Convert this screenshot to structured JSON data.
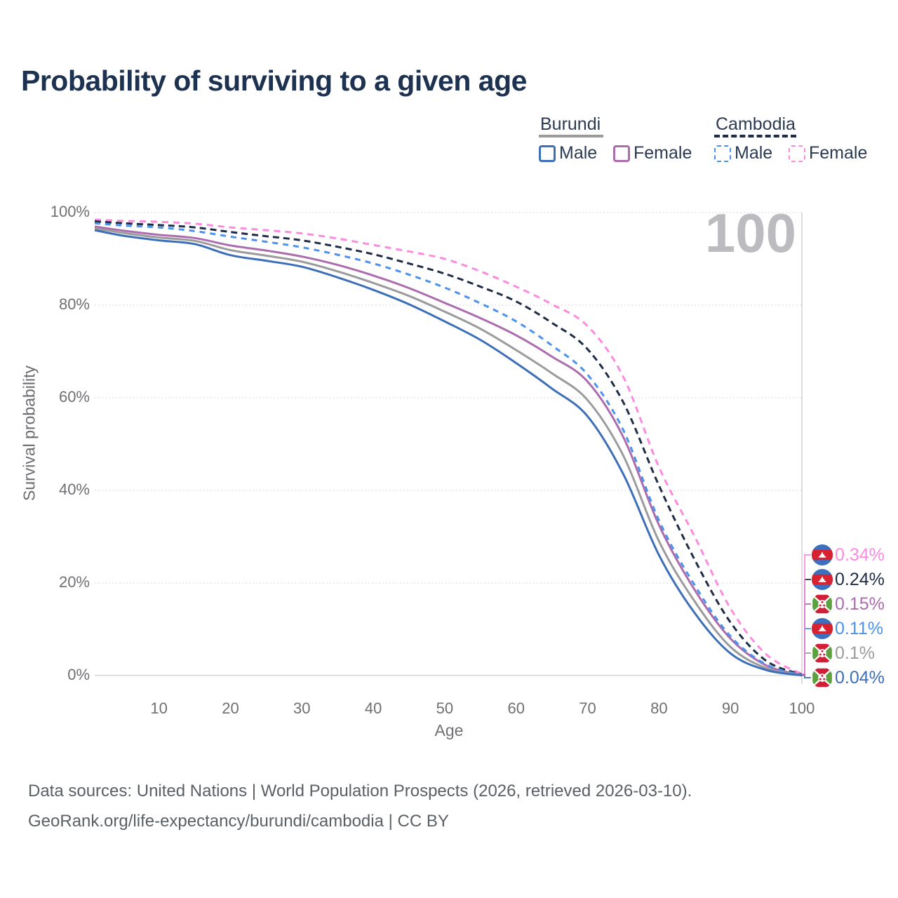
{
  "title": "Probability of surviving to a given age",
  "watermark_age": "100",
  "legend": {
    "groups": [
      {
        "country": "Burundi",
        "line_style": "solid",
        "underline_color": "#9b9b9b",
        "items": [
          {
            "label": "Male",
            "color": "#3d6fb8"
          },
          {
            "label": "Female",
            "color": "#ab6dad"
          }
        ]
      },
      {
        "country": "Cambodia",
        "line_style": "dashed",
        "underline_color": "#1e2c45",
        "items": [
          {
            "label": "Male",
            "color": "#4b92ee"
          },
          {
            "label": "Female",
            "color": "#fc8be0"
          }
        ]
      }
    ]
  },
  "axes": {
    "x_label": "Age",
    "y_label": "Survival probability",
    "x_ticks": [
      10,
      20,
      30,
      40,
      50,
      60,
      70,
      80,
      90,
      100
    ],
    "y_ticks": [
      0,
      20,
      40,
      60,
      80,
      100
    ],
    "y_tick_suffix": "%"
  },
  "chart_data": {
    "type": "line",
    "title": "Probability of surviving to a given age",
    "xlabel": "Age",
    "ylabel": "Survival probability",
    "xlim": [
      1,
      100
    ],
    "ylim": [
      0,
      100
    ],
    "grid": "horizontal-dotted",
    "hover_age_indicator": 100,
    "x": [
      1,
      5,
      10,
      15,
      20,
      25,
      30,
      35,
      40,
      45,
      50,
      55,
      60,
      65,
      70,
      75,
      80,
      85,
      90,
      95,
      100
    ],
    "series": [
      {
        "id": "cambodia-female",
        "country": "Cambodia",
        "sex": "Female",
        "name": "Cambodia Female",
        "color": "#fc8be0",
        "dash": "9 7",
        "flag": "KH",
        "end_label": "0.34%",
        "end_value": 0.34,
        "values": [
          98.5,
          98.2,
          98.0,
          97.6,
          96.8,
          96.2,
          95.5,
          94.4,
          93.0,
          91.6,
          90.0,
          87.3,
          84.0,
          80.2,
          75.5,
          64.5,
          45.0,
          30.0,
          14.5,
          4.6,
          0.34
        ]
      },
      {
        "id": "cambodia-both",
        "country": "Cambodia",
        "sex": "Both sexes",
        "name": "Cambodia Both sexes",
        "color": "#1e2c45",
        "dash": "9 6",
        "flag": "KH",
        "end_label": "0.24%",
        "end_value": 0.24,
        "values": [
          98.1,
          97.7,
          97.3,
          96.8,
          95.8,
          94.9,
          94.0,
          92.6,
          91.0,
          89.0,
          86.8,
          84.0,
          80.8,
          76.2,
          70.5,
          59.0,
          41.0,
          25.0,
          11.5,
          3.2,
          0.24
        ]
      },
      {
        "id": "burundi-female",
        "country": "Burundi",
        "sex": "Female",
        "name": "Burundi Female",
        "color": "#ab6dad",
        "dash": "",
        "flag": "BI",
        "end_label": "0.15%",
        "end_value": 0.15,
        "values": [
          97.0,
          96.1,
          95.2,
          94.5,
          92.9,
          91.8,
          90.5,
          88.7,
          86.4,
          83.7,
          80.5,
          77.2,
          73.5,
          68.9,
          63.5,
          51.5,
          32.5,
          18.5,
          8.0,
          2.2,
          0.15
        ]
      },
      {
        "id": "cambodia-male",
        "country": "Cambodia",
        "sex": "Male",
        "name": "Cambodia Male",
        "color": "#4b92ee",
        "dash": "8 7",
        "flag": "KH",
        "end_label": "0.11%",
        "end_value": 0.11,
        "values": [
          97.7,
          97.2,
          96.8,
          96.0,
          94.8,
          93.7,
          92.5,
          90.9,
          89.0,
          86.6,
          83.8,
          80.4,
          76.5,
          71.3,
          65.0,
          53.0,
          33.5,
          19.5,
          8.5,
          2.4,
          0.11
        ]
      },
      {
        "id": "burundi-both",
        "country": "Burundi",
        "sex": "Both sexes",
        "name": "Burundi Both sexes",
        "color": "#9b9b9b",
        "dash": "",
        "flag": "BI",
        "end_label": "0.1%",
        "end_value": 0.1,
        "values": [
          96.6,
          95.6,
          94.6,
          93.9,
          91.9,
          90.7,
          89.4,
          87.3,
          84.8,
          82.0,
          78.6,
          74.9,
          70.3,
          65.3,
          59.5,
          47.5,
          29.0,
          16.0,
          6.2,
          1.6,
          0.1
        ]
      },
      {
        "id": "burundi-male",
        "country": "Burundi",
        "sex": "Male",
        "name": "Burundi Male",
        "color": "#3d6fb8",
        "dash": "",
        "flag": "BI",
        "end_label": "0.04%",
        "end_value": 0.04,
        "values": [
          96.2,
          95.0,
          94.0,
          93.2,
          90.8,
          89.6,
          88.3,
          86.0,
          83.3,
          80.2,
          76.5,
          72.5,
          67.5,
          62.0,
          56.0,
          43.5,
          26.0,
          13.5,
          4.8,
          1.2,
          0.04
        ]
      }
    ]
  },
  "colors": {
    "title": "#1d3150",
    "axis_text": "#6f6f74",
    "grid": "#e6e6ea",
    "baseline": "#d9d9de",
    "hover_line": "#d4d4d8",
    "watermark": "#bcbcc0",
    "flag_kh_blue": "#3b6fc0",
    "flag_kh_red": "#d8222f",
    "flag_bi_red": "#cf2038",
    "flag_bi_green": "#5ba13f"
  },
  "footer": {
    "line1": "Data sources: United Nations | World Population Prospects (2026, retrieved 2026-03-10).",
    "line2": "GeoRank.org/life-expectancy/burundi/cambodia | CC BY"
  }
}
